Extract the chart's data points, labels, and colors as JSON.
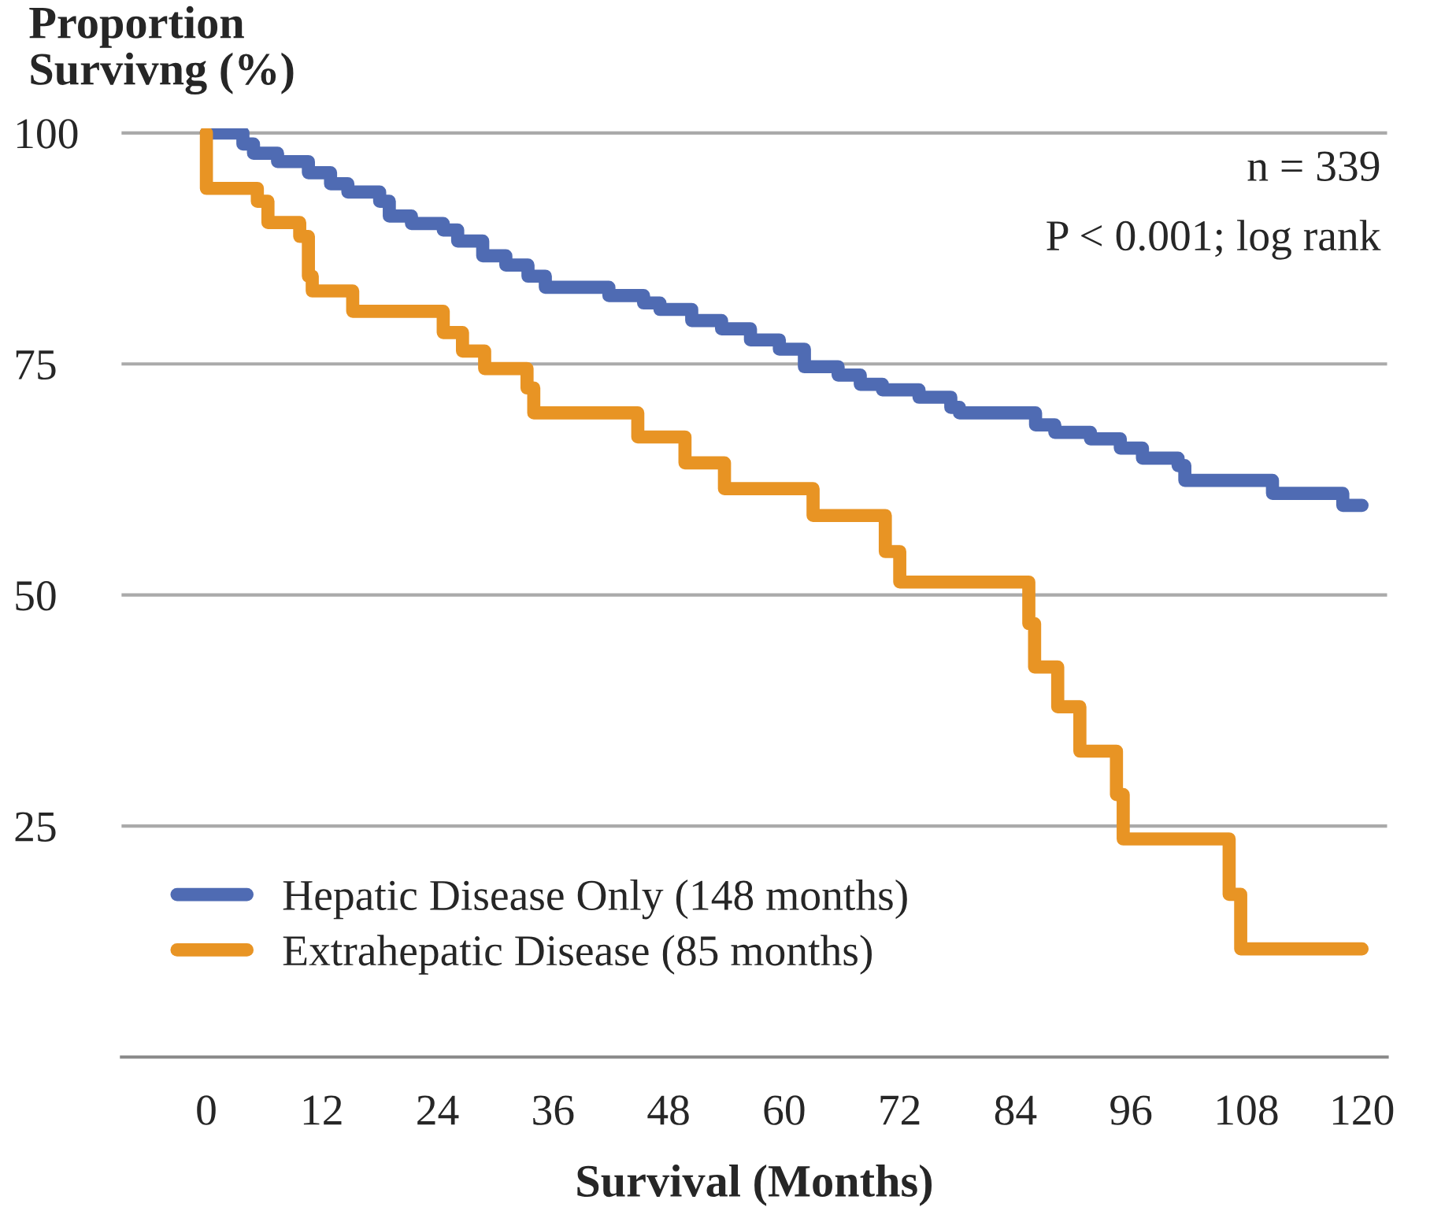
{
  "chart_data": {
    "type": "step",
    "ylabel": "Proportion\nSurvivng (%)",
    "xlabel": "Survival (Months)",
    "annotations": [
      "n = 339",
      "P < 0.001; log rank"
    ],
    "xlim": [
      -8.8,
      122.6
    ],
    "ylim": [
      0,
      100.5
    ],
    "xticks": [
      0,
      12,
      24,
      36,
      48,
      60,
      72,
      84,
      96,
      108,
      120
    ],
    "yticks": [
      25,
      50,
      75,
      100
    ],
    "grid": "y",
    "legend": "bottom left",
    "line_style": "solid",
    "marker": "none",
    "series": [
      {
        "name": "Hepatic Disease Only (148 months)",
        "color": "#4f6bb3",
        "x": [
          0,
          3.8,
          4.9,
          7.4,
          10.6,
          12.9,
          14.7,
          18,
          19,
          21.3,
          24.6,
          26.1,
          28.7,
          31.1,
          33.4,
          35.2,
          41.8,
          45.4,
          47.1,
          50.4,
          53.5,
          56.5,
          59.5,
          62.1,
          65.6,
          67.9,
          70.2,
          74,
          77.3,
          78.2,
          86.1,
          88.1,
          91.8,
          94.9,
          97.2,
          100.9,
          101.6,
          110.7,
          118,
          120
        ],
        "values": [
          100,
          98.8,
          97.8,
          96.9,
          95.7,
          94.5,
          93.6,
          92.6,
          91,
          90.2,
          89.5,
          88.3,
          86.7,
          85.7,
          84.5,
          83.3,
          82.4,
          81.6,
          80.9,
          79.7,
          78.8,
          77.6,
          76.6,
          74.7,
          73.8,
          72.8,
          72.2,
          71.4,
          70.3,
          69.7,
          68.4,
          67.6,
          66.9,
          65.9,
          64.8,
          64,
          62.4,
          61,
          59.7,
          59.7
        ]
      },
      {
        "name": "Extrahepatic Disease (85 months)",
        "color": "#e89424",
        "x": [
          0,
          0.01,
          5.3,
          6.4,
          9.7,
          10.6,
          11,
          15.2,
          24.6,
          26.6,
          28.9,
          33.3,
          34,
          44.8,
          49.7,
          53.8,
          63,
          70.5,
          72,
          85.4,
          86,
          88.4,
          90.7,
          94.5,
          95.2,
          106.2,
          107.4,
          120
        ],
        "values": [
          100,
          94,
          92.6,
          90.3,
          88.8,
          84.5,
          82.9,
          80.7,
          78.4,
          76.4,
          74.5,
          72.4,
          69.7,
          67.1,
          64.3,
          61.5,
          58.6,
          54.7,
          51.4,
          46.9,
          42.2,
          37.9,
          33.1,
          28.4,
          23.6,
          17.6,
          11.7,
          11.7
        ]
      }
    ]
  }
}
